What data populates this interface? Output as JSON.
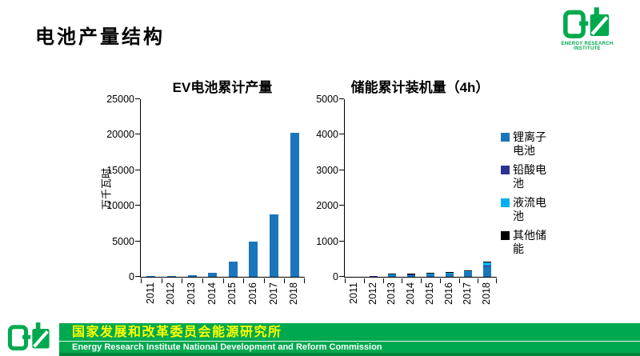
{
  "slide": {
    "title": "电池产量结构",
    "logo_caption": "ENERGY RESEARCH INSTITUTE",
    "footer": {
      "line_cn": "国家发展和改革委员会能源研究所",
      "line_en": "Energy Research Institute National Development and Reform Commission"
    }
  },
  "colors": {
    "li_ion": "#1b75bb",
    "lead_acid": "#2e3192",
    "flow": "#00b0f0",
    "other": "#000000",
    "brand_green": "#00a94f",
    "footer_yellow": "#ffff00",
    "axis": "#000000"
  },
  "chart_data": [
    {
      "type": "bar",
      "title": "EV电池累计产量",
      "ylabel": "万千瓦时",
      "categories": [
        "2011",
        "2012",
        "2013",
        "2014",
        "2015",
        "2016",
        "2017",
        "2018"
      ],
      "values": [
        10,
        40,
        230,
        520,
        2150,
        5000,
        8800,
        20300
      ],
      "ylim": [
        0,
        25000
      ],
      "yticks": [
        0,
        5000,
        10000,
        15000,
        20000,
        25000
      ],
      "bar_color": "li_ion",
      "grid": false,
      "legend_position": "none"
    },
    {
      "type": "bar",
      "stacked": true,
      "title": "储能累计装机量（4h）",
      "ylabel": "",
      "categories": [
        "2011",
        "2012",
        "2013",
        "2014",
        "2015",
        "2016",
        "2017",
        "2018"
      ],
      "series": [
        {
          "name": "锂离子电池",
          "color": "li_ion",
          "values": [
            0,
            2,
            50,
            60,
            65,
            85,
            130,
            300
          ]
        },
        {
          "name": "铅酸电池",
          "color": "lead_acid",
          "values": [
            0,
            1,
            10,
            14,
            14,
            14,
            16,
            20
          ]
        },
        {
          "name": "液流电池",
          "color": "flow",
          "values": [
            0,
            0,
            5,
            8,
            8,
            10,
            15,
            90
          ]
        },
        {
          "name": "其他储能",
          "color": "other",
          "values": [
            0,
            0,
            3,
            4,
            5,
            8,
            10,
            15
          ]
        }
      ],
      "ylim": [
        0,
        5000
      ],
      "yticks": [
        0,
        1000,
        2000,
        3000,
        4000,
        5000
      ],
      "grid": false,
      "legend_position": "right"
    }
  ],
  "legend": [
    {
      "label": "锂离子电池",
      "color": "li_ion"
    },
    {
      "label": "铅酸电池",
      "color": "lead_acid"
    },
    {
      "label": "液流电池",
      "color": "flow"
    },
    {
      "label": "其他储能",
      "color": "other"
    }
  ]
}
